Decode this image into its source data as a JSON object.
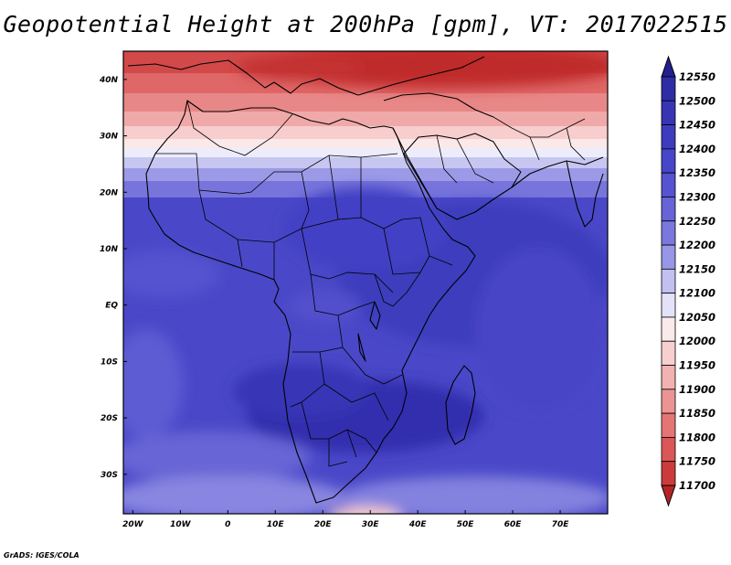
{
  "title": "Geopotential Height at 200hPa [gpm], VT: 2017022515",
  "credit": "GrADS: IGES/COLA",
  "axes": {
    "lon_ticks": [
      "20W",
      "10W",
      "0",
      "10E",
      "20E",
      "30E",
      "40E",
      "50E",
      "60E",
      "70E"
    ],
    "lon_values": [
      -20,
      -10,
      0,
      10,
      20,
      30,
      40,
      50,
      60,
      70
    ],
    "lat_ticks": [
      "40N",
      "30N",
      "20N",
      "10N",
      "EQ",
      "10S",
      "20S",
      "30S"
    ],
    "lat_values": [
      40,
      30,
      20,
      10,
      0,
      -10,
      -20,
      -30
    ],
    "lon_range": [
      -22,
      80
    ],
    "lat_range": [
      -37,
      45
    ]
  },
  "colorbar": {
    "labels": [
      "12550",
      "12500",
      "12450",
      "12400",
      "12350",
      "12300",
      "12250",
      "12200",
      "12150",
      "12100",
      "12050",
      "12000",
      "11950",
      "11900",
      "11850",
      "11800",
      "11750",
      "11700"
    ],
    "colors": [
      "#22208f",
      "#2e2da6",
      "#3735b4",
      "#3d3cbf",
      "#4745c8",
      "#5553cf",
      "#6664d6",
      "#7a78dd",
      "#9896e6",
      "#c1c0f0",
      "#e3e2f8",
      "#fbeaea",
      "#f7cfcf",
      "#f2b2b2",
      "#ec9494",
      "#e57575",
      "#db5656",
      "#cc3b3b",
      "#b52525"
    ]
  }
}
